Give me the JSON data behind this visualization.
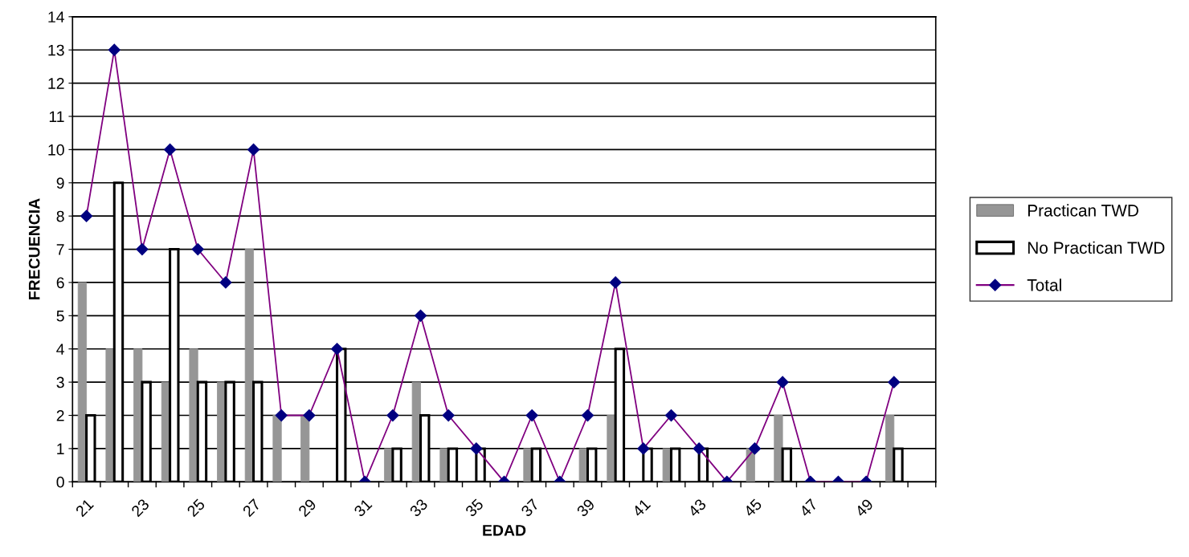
{
  "chart_data": {
    "type": "bar",
    "xlabel": "EDAD",
    "ylabel": "FRECUENCIA",
    "categories": [
      "21",
      null,
      "23",
      null,
      "25",
      null,
      "27",
      null,
      "29",
      null,
      "31",
      null,
      "33",
      null,
      "35",
      null,
      "37",
      null,
      "39",
      null,
      "41",
      null,
      "43",
      null,
      "45",
      null,
      "47",
      null,
      "49",
      null,
      null
    ],
    "series": [
      {
        "name": "Practican TWD",
        "color": "#969696",
        "values": [
          6,
          4,
          4,
          3,
          4,
          3,
          7,
          2,
          2,
          0,
          0,
          1,
          3,
          1,
          0,
          0,
          1,
          0,
          1,
          2,
          0,
          1,
          0,
          0,
          1,
          2,
          0,
          0,
          0,
          2,
          null
        ]
      },
      {
        "name": "No Practican TWD",
        "color": "#ffffff",
        "values": [
          2,
          9,
          3,
          7,
          3,
          3,
          3,
          0,
          0,
          4,
          0,
          1,
          2,
          1,
          1,
          0,
          1,
          0,
          1,
          4,
          1,
          1,
          1,
          0,
          0,
          1,
          0,
          0,
          0,
          1,
          null
        ]
      },
      {
        "name": "Total",
        "type": "line",
        "color": "#800080",
        "marker": "diamond",
        "values": [
          8,
          13,
          7,
          10,
          7,
          6,
          10,
          2,
          2,
          4,
          0,
          2,
          5,
          2,
          1,
          0,
          2,
          0,
          2,
          6,
          1,
          2,
          1,
          0,
          1,
          3,
          0,
          0,
          0,
          3,
          null
        ]
      }
    ],
    "ylim": [
      0,
      14
    ],
    "yticks": [
      0,
      1,
      2,
      3,
      4,
      5,
      6,
      7,
      8,
      9,
      10,
      11,
      12,
      13,
      14
    ],
    "grid": "y",
    "legend": "right"
  }
}
